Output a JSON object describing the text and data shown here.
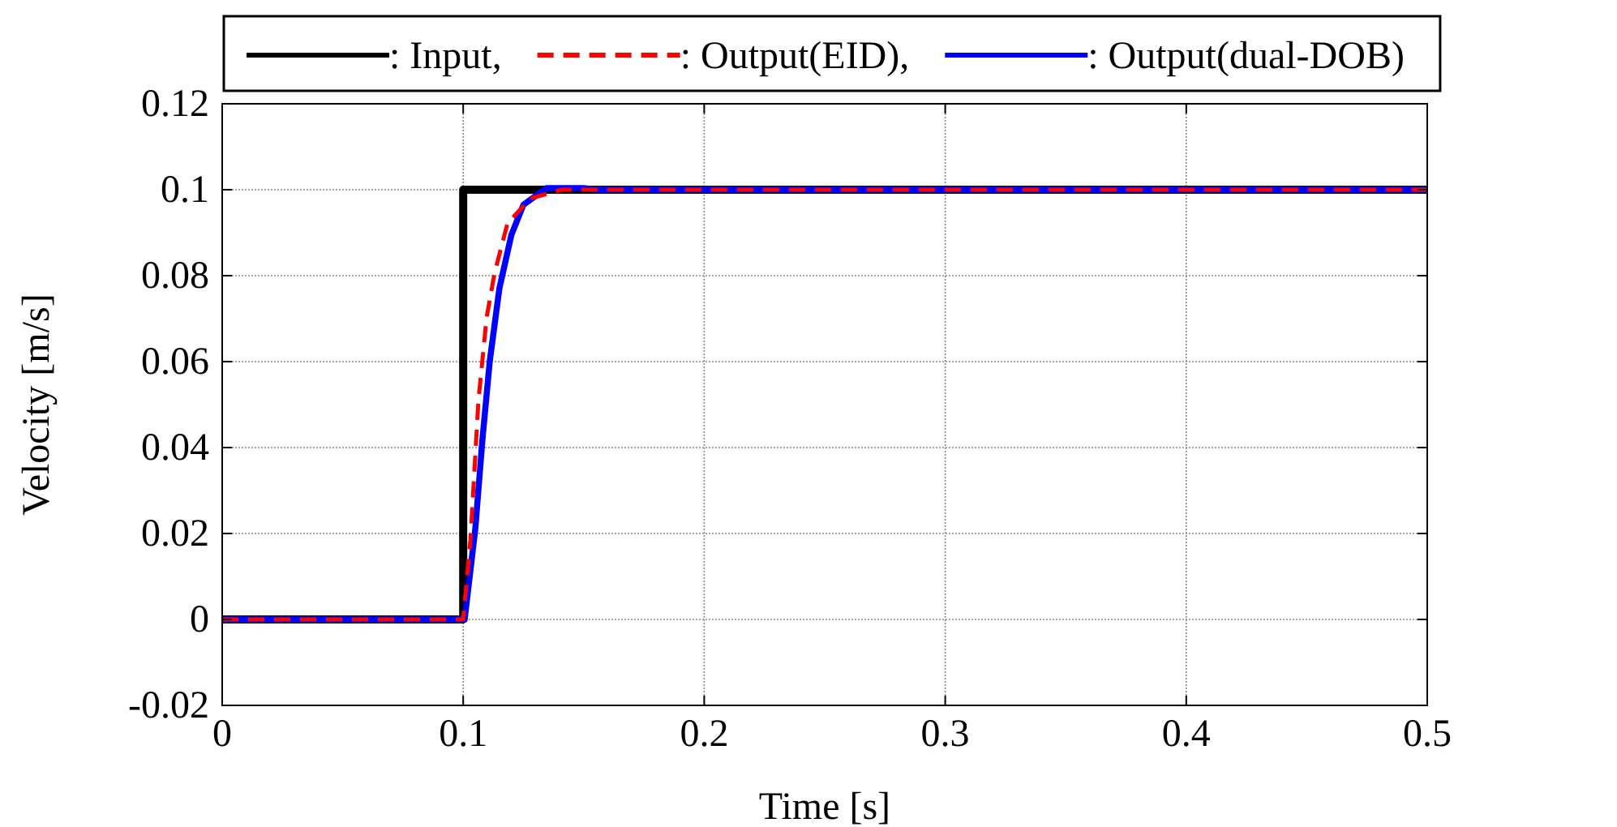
{
  "chart_data": {
    "type": "line",
    "xlabel": "Time [s]",
    "ylabel": "Velocity [m/s]",
    "xlim": [
      0,
      0.5
    ],
    "xticks": [
      0,
      0.1,
      0.2,
      0.3,
      0.4,
      0.5
    ],
    "ylim": [
      -0.02,
      0.12
    ],
    "yticks": [
      -0.02,
      0,
      0.02,
      0.04,
      0.06,
      0.08,
      0.1,
      0.12
    ],
    "grid": true,
    "legend": "top",
    "series": [
      {
        "name": ": Input,",
        "color": "#000000",
        "line_style": "solid",
        "x": [
          0,
          0.1,
          0.1,
          0.5
        ],
        "values": [
          0,
          0,
          0.1,
          0.1
        ]
      },
      {
        "name": ": Output(EID),",
        "color": "#ff0000",
        "line_style": "dashed",
        "x": [
          0,
          0.1,
          0.103,
          0.1063,
          0.1097,
          0.113,
          0.1184,
          0.128,
          0.141,
          0.5
        ],
        "values": [
          0,
          0,
          0.0186,
          0.0508,
          0.0702,
          0.0806,
          0.0922,
          0.098,
          0.1,
          0.1
        ]
      },
      {
        "name": ": Output(dual-DOB)",
        "color": "#0000ff",
        "line_style": "solid",
        "x": [
          0,
          0.1006,
          0.105,
          0.108,
          0.111,
          0.115,
          0.12,
          0.125,
          0.1346,
          0.15,
          0.155,
          0.5
        ],
        "values": [
          0,
          0,
          0.021,
          0.042,
          0.06,
          0.077,
          0.0895,
          0.0965,
          0.1004,
          0.1004,
          0.1,
          0.1
        ]
      }
    ]
  }
}
